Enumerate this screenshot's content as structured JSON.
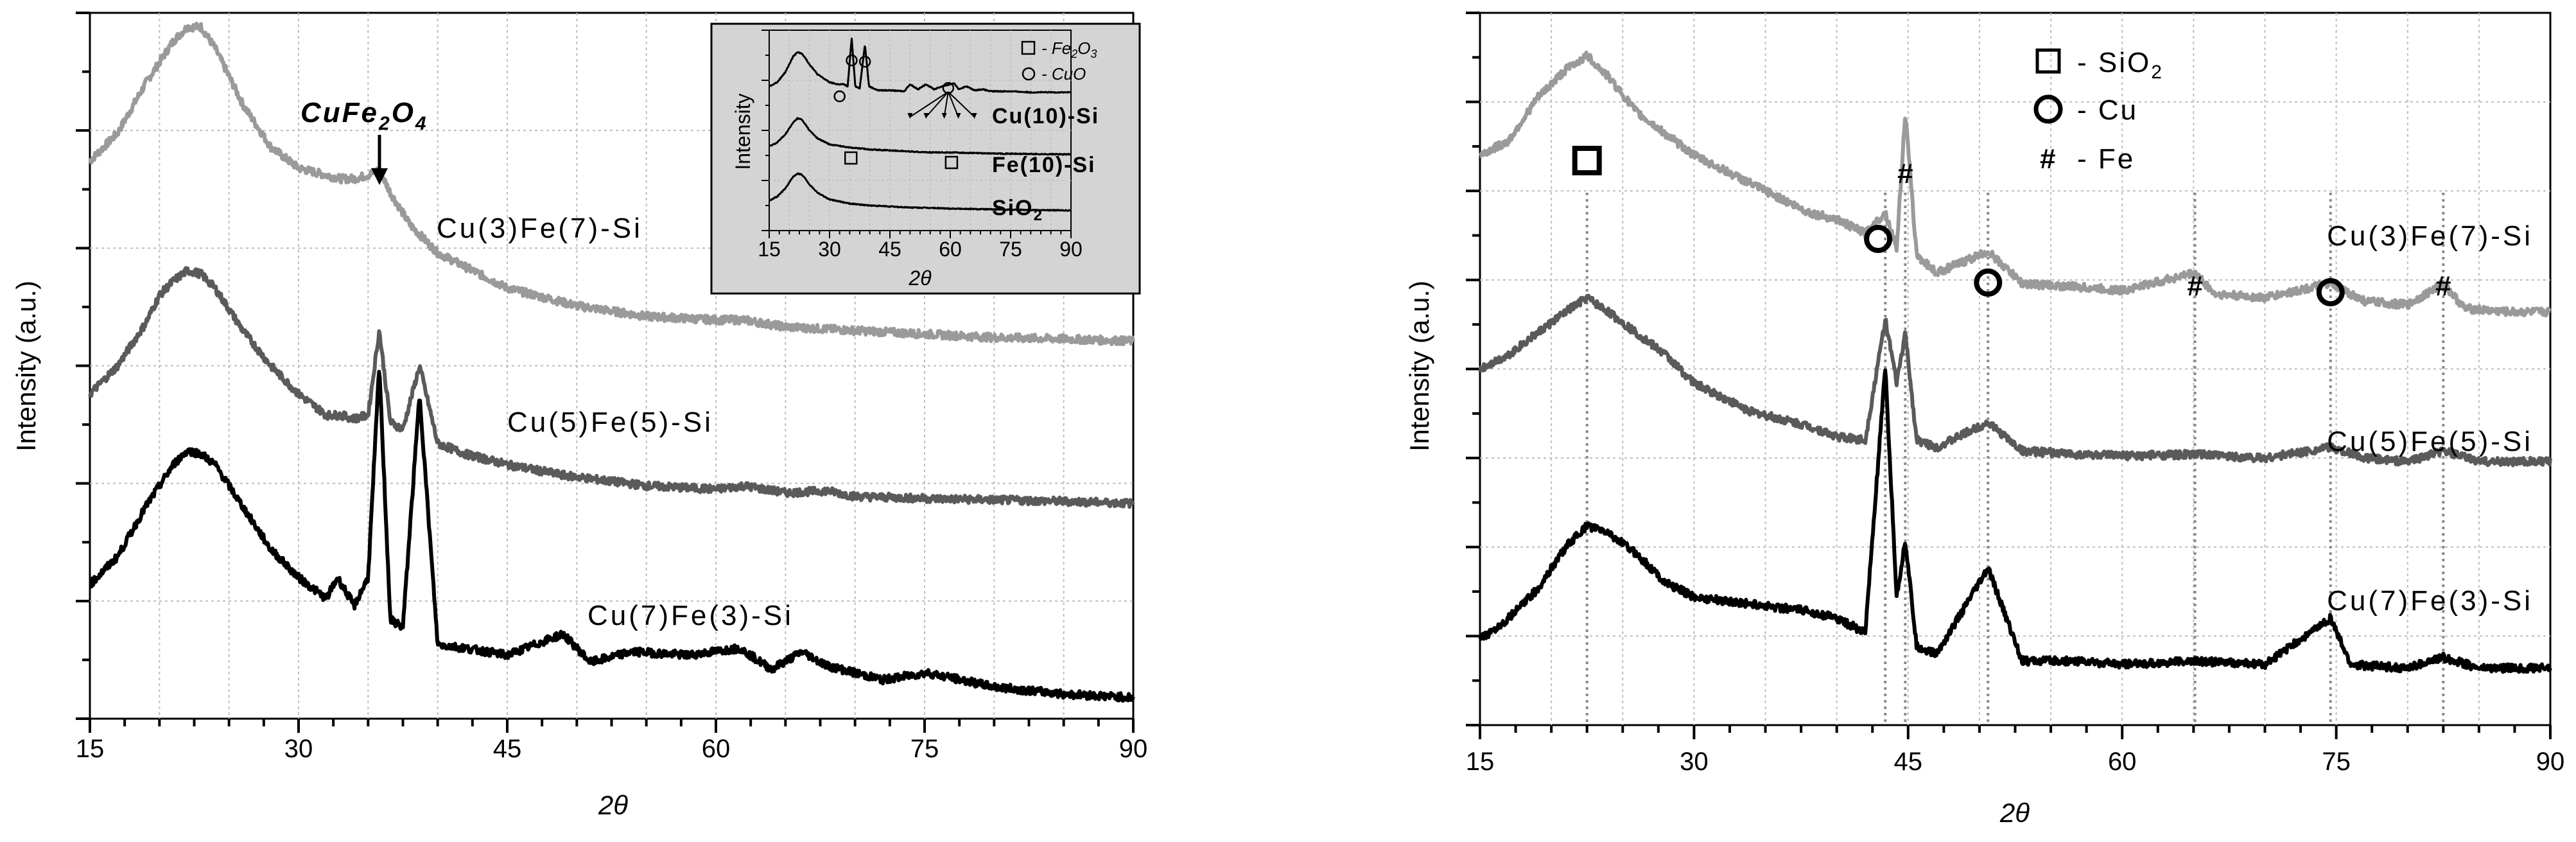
{
  "chart_data": [
    {
      "type": "line",
      "title": "",
      "xlabel": "2θ",
      "ylabel": "Intensity (a.u.)",
      "xlim": [
        15,
        90
      ],
      "ylim": [
        0,
        100
      ],
      "grid": true,
      "xticks": [
        "15",
        "30",
        "45",
        "60",
        "75",
        "90"
      ],
      "annotations": [
        {
          "text": "CuFe",
          "sub1": "2",
          "mid": "O",
          "sub2": "4",
          "x": 35.9
        }
      ],
      "series": [
        {
          "name": "Cu(3)Fe(7)-Si",
          "color": "#9a9a9a",
          "base": 55,
          "hump": 32,
          "peaks": [
            {
              "x": 35.8,
              "h": 5
            }
          ],
          "x": [
            15,
            17,
            19,
            20,
            21,
            22,
            23,
            24,
            25,
            26,
            28,
            30,
            32,
            33,
            34,
            35,
            35.8,
            36.6,
            38,
            40,
            45,
            50,
            55,
            60,
            62,
            65,
            70,
            75,
            80,
            85,
            90
          ],
          "y": [
            79,
            83,
            90,
            93,
            96,
            98,
            98,
            95,
            91,
            87,
            81,
            78,
            77,
            76.5,
            76.5,
            77,
            77.8,
            74.5,
            70,
            66,
            61,
            58.5,
            57,
            56.5,
            56.5,
            55.5,
            55,
            54.5,
            54,
            53.8,
            53.5
          ]
        },
        {
          "name": "Cu(5)Fe(5)-Si",
          "color": "#5a5a5a",
          "base": 31,
          "x": [
            15,
            17,
            19,
            20,
            21,
            22,
            23,
            24,
            25,
            26,
            28,
            30,
            32,
            33,
            34,
            35,
            35.8,
            36.6,
            37.5,
            38.7,
            40,
            42,
            45,
            49,
            55,
            60,
            62,
            65,
            68,
            70,
            75,
            80,
            85,
            90
          ],
          "y": [
            46,
            50,
            56,
            60,
            62,
            63.5,
            63,
            61,
            58,
            55,
            50,
            46,
            43,
            43,
            42.5,
            43,
            55,
            42,
            41,
            50,
            39,
            37.5,
            36,
            34.5,
            33,
            32.5,
            33,
            32,
            32.3,
            31.5,
            31.2,
            31,
            30.8,
            30.5
          ]
        },
        {
          "name": "Cu(7)Fe(3)-Si",
          "color": "#000000",
          "base": 3,
          "x": [
            15,
            17,
            19,
            20,
            21,
            22,
            23,
            24,
            25,
            26,
            28,
            30,
            32,
            32.8,
            34,
            35,
            35.8,
            36.6,
            37.5,
            38.7,
            40,
            42,
            45,
            49,
            51,
            54,
            58,
            61.7,
            64,
            66.2,
            68,
            72,
            75.2,
            80,
            85,
            90
          ],
          "y": [
            19,
            23,
            30,
            33,
            36,
            38,
            37.5,
            36,
            33,
            30,
            24,
            20,
            17,
            20,
            16,
            20,
            50,
            14,
            13,
            46,
            10.5,
            10,
            9,
            12,
            8,
            9.5,
            9,
            10,
            7,
            9.5,
            7.5,
            5.5,
            6.5,
            4.5,
            3.5,
            3
          ]
        }
      ]
    },
    {
      "type": "line",
      "title": "",
      "xlabel": "2θ",
      "ylabel": "Intensity (a.u.)",
      "xlim": [
        15,
        90
      ],
      "ylim": [
        0,
        100
      ],
      "grid": true,
      "xticks": [
        "15",
        "30",
        "45",
        "60",
        "75",
        "90"
      ],
      "vlines": [
        22.5,
        43.4,
        44.8,
        50.6,
        65.1,
        74.6,
        82.5
      ],
      "markers": [
        {
          "symbol": "square",
          "x": 22.5
        },
        {
          "symbol": "circle",
          "x": 42.9
        },
        {
          "symbol": "hash",
          "text": "#",
          "x": 44.8
        },
        {
          "symbol": "circle",
          "x": 50.6
        },
        {
          "symbol": "hash",
          "text": "#",
          "x": 65.1
        },
        {
          "symbol": "circle",
          "x": 74.6
        },
        {
          "symbol": "hash",
          "text": "#",
          "x": 82.5
        }
      ],
      "series": [
        {
          "name": "Cu(3)Fe(7)-Si",
          "color": "#9a9a9a",
          "x": [
            15,
            17,
            19,
            20,
            21,
            22.5,
            24,
            26,
            28,
            30,
            34,
            38,
            40,
            42,
            43.4,
            44.2,
            44.8,
            45.6,
            47,
            50.6,
            53,
            57,
            60,
            65.1,
            66.5,
            70,
            74.6,
            77,
            80,
            82.5,
            84,
            87,
            90
          ],
          "y": [
            80,
            82,
            88,
            90,
            92,
            94,
            91,
            86,
            83,
            80,
            76,
            72,
            71,
            69,
            72,
            67,
            86,
            66,
            63.5,
            66.5,
            62,
            61.5,
            61,
            63.5,
            60.5,
            60,
            62,
            59.5,
            59,
            62,
            58.5,
            58,
            58
          ]
        },
        {
          "name": "Cu(5)Fe(5)-Si",
          "color": "#5a5a5a",
          "x": [
            15,
            17,
            19,
            20,
            21,
            22.5,
            24,
            26,
            28,
            30,
            34,
            38,
            40,
            42,
            43.4,
            44.2,
            44.8,
            45.6,
            47,
            50.6,
            53,
            57,
            60,
            65.1,
            70,
            74.6,
            77,
            80,
            82.5,
            85,
            90
          ],
          "y": [
            50,
            52,
            55,
            56.5,
            58,
            60,
            58,
            55,
            52,
            48,
            44,
            42,
            40.5,
            40,
            57,
            48,
            55,
            40,
            39,
            42.5,
            38.5,
            38,
            37.8,
            38,
            37.5,
            39,
            37.5,
            37,
            38.5,
            37,
            37
          ]
        },
        {
          "name": "Cu(7)Fe(3)-Si",
          "color": "#000000",
          "x": [
            15,
            17,
            19,
            20,
            21,
            22.5,
            24,
            26,
            28,
            30,
            34,
            38,
            40,
            42,
            43.4,
            44.2,
            44.8,
            45.6,
            47,
            50.6,
            53,
            57,
            60,
            65.1,
            70,
            74.6,
            76,
            80,
            82.5,
            85,
            90
          ],
          "y": [
            12,
            15,
            19,
            22,
            25,
            28,
            27,
            24,
            20,
            18,
            17,
            16,
            15,
            13,
            50,
            18,
            26,
            11,
            10,
            22,
            9,
            9,
            8.5,
            9,
            8.5,
            15,
            8.5,
            8,
            9.5,
            8,
            8
          ]
        }
      ]
    },
    {
      "type": "line",
      "title": "",
      "xlabel": "2θ",
      "ylabel": "Intensity",
      "xlim": [
        15,
        90
      ],
      "ylim": [
        0,
        100
      ],
      "grid": true,
      "xticks": [
        "15",
        "30",
        "45",
        "60",
        "75",
        "90"
      ],
      "legend": [
        {
          "symbol": "square",
          "text": "- Fe",
          "sub": "2",
          "text2": "O",
          "sub2": "3"
        },
        {
          "symbol": "circle",
          "text": "- CuO"
        }
      ],
      "open_circles_x": [
        35.5,
        38.8,
        32.5
      ],
      "open_squares_x": [
        35.3,
        60.3
      ],
      "series": [
        {
          "name": "Cu(10)-Si",
          "label": "Cu(10)-Si",
          "color": "#000000",
          "x": [
            15,
            17,
            19,
            20,
            21,
            22,
            23,
            24,
            25,
            27,
            30,
            32,
            33.5,
            34.5,
            35.5,
            36.4,
            37.5,
            38.8,
            39.8,
            42,
            45,
            48.5,
            50,
            52,
            54,
            56,
            58,
            61,
            62,
            64,
            66,
            68,
            70,
            75,
            80,
            85,
            90
          ],
          "y": [
            72,
            74,
            79,
            83,
            87,
            89,
            88.5,
            86,
            83,
            78,
            74,
            73,
            73,
            72,
            96,
            72,
            71,
            93,
            72,
            70,
            70,
            69.5,
            73,
            70.5,
            73,
            70.5,
            72,
            73.5,
            70.5,
            72,
            70,
            70.5,
            69.5,
            69.5,
            69,
            69,
            69
          ]
        },
        {
          "name": "Fe(10)-Si",
          "label": "Fe(10)-Si",
          "color": "#000000",
          "x": [
            15,
            17,
            19,
            20,
            21,
            22,
            23,
            24,
            25,
            27,
            30,
            35,
            40,
            45,
            50,
            55,
            60,
            65,
            70,
            80,
            90
          ],
          "y": [
            42,
            44,
            48,
            51,
            54,
            56,
            55.5,
            53,
            50,
            46,
            43,
            41.5,
            40.5,
            40,
            39.5,
            39,
            39,
            38.7,
            38.5,
            38.2,
            38
          ]
        },
        {
          "name": "SiO2",
          "label": "SiO",
          "label_sub": "2",
          "color": "#000000",
          "x": [
            15,
            17,
            19,
            20,
            21,
            22,
            23,
            24,
            25,
            27,
            30,
            35,
            40,
            45,
            50,
            55,
            60,
            65,
            70,
            80,
            90
          ],
          "y": [
            15,
            17,
            21,
            24,
            27,
            28.5,
            28,
            26,
            23,
            19,
            15.5,
            13.5,
            12.5,
            12,
            11.5,
            11.3,
            11,
            10.8,
            10.6,
            10.3,
            10
          ]
        }
      ]
    }
  ]
}
